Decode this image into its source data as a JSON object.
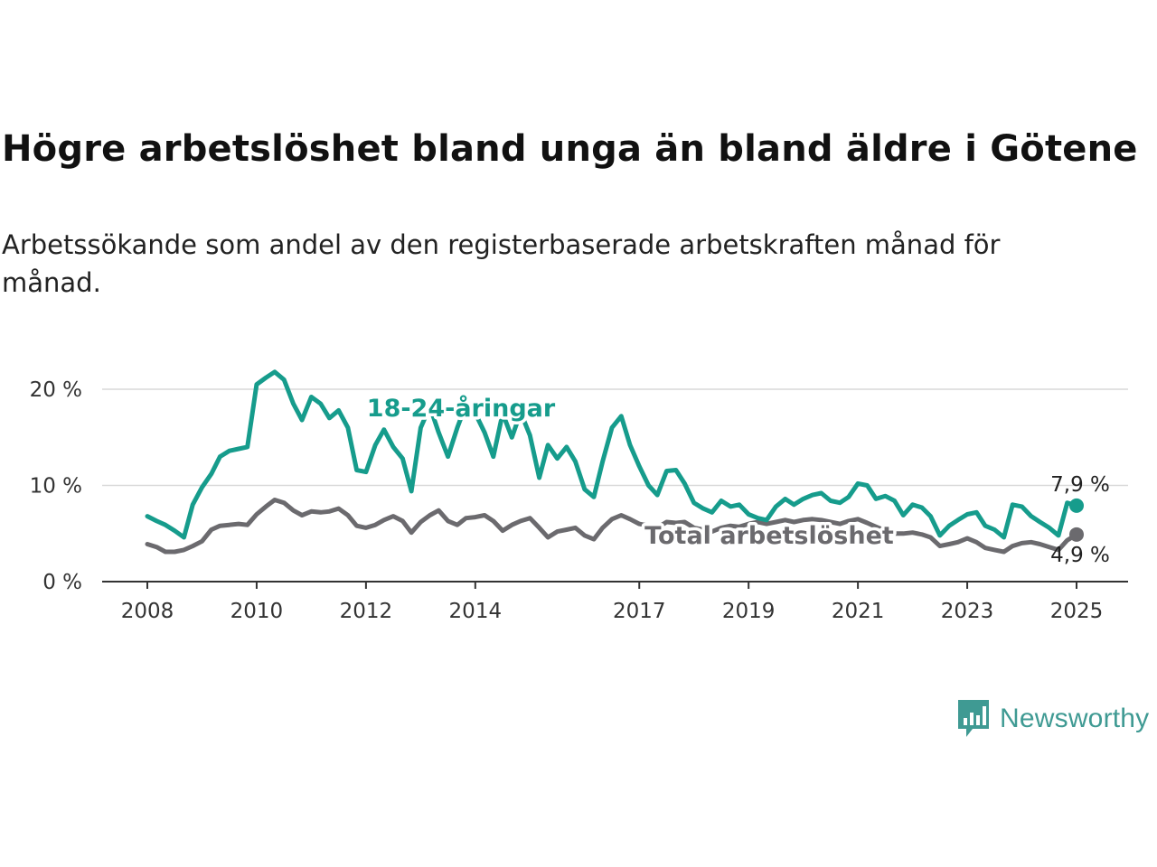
{
  "title": "Högre arbetslöshet bland unga än bland äldre i Götene",
  "subtitle": "Arbetssökande som andel av den registerbaserade arbetskraften månad för månad.",
  "logo": {
    "text": "Newsworthy",
    "icon": "bar-chart-speech-bubble-icon",
    "color": "#3f9a93"
  },
  "chart_data": {
    "type": "line",
    "title": "",
    "xlabel": "",
    "ylabel": "",
    "ylim": [
      0,
      22
    ],
    "y_ticks": [
      0,
      10,
      20
    ],
    "y_tick_labels": [
      "0 %",
      "10 %",
      "20 %"
    ],
    "x_ticks": [
      2008,
      2010,
      2012,
      2014,
      2017,
      2019,
      2021,
      2023,
      2025
    ],
    "x_tick_labels": [
      "2008",
      "2010",
      "2012",
      "2014",
      "2017",
      "2019",
      "2021",
      "2023",
      "2025"
    ],
    "grid": "horizontal",
    "legend": "direct labels on lines",
    "series": [
      {
        "name": "18-24-åringar",
        "color": "#169c8c",
        "end_label": "7,9 %",
        "points": [
          [
            2008.0,
            6.8
          ],
          [
            2008.17,
            6.3
          ],
          [
            2008.33,
            5.9
          ],
          [
            2008.5,
            5.3
          ],
          [
            2008.67,
            4.6
          ],
          [
            2008.83,
            8.0
          ],
          [
            2009.0,
            9.8
          ],
          [
            2009.17,
            11.2
          ],
          [
            2009.33,
            13.0
          ],
          [
            2009.5,
            13.6
          ],
          [
            2009.67,
            13.8
          ],
          [
            2009.83,
            14.0
          ],
          [
            2010.0,
            20.5
          ],
          [
            2010.17,
            21.2
          ],
          [
            2010.33,
            21.8
          ],
          [
            2010.5,
            21.0
          ],
          [
            2010.67,
            18.5
          ],
          [
            2010.83,
            16.8
          ],
          [
            2011.0,
            19.2
          ],
          [
            2011.17,
            18.5
          ],
          [
            2011.33,
            17.0
          ],
          [
            2011.5,
            17.8
          ],
          [
            2011.67,
            16.0
          ],
          [
            2011.83,
            11.6
          ],
          [
            2012.0,
            11.4
          ],
          [
            2012.17,
            14.2
          ],
          [
            2012.33,
            15.8
          ],
          [
            2012.5,
            14.0
          ],
          [
            2012.67,
            12.8
          ],
          [
            2012.83,
            9.4
          ],
          [
            2013.0,
            16.0
          ],
          [
            2013.17,
            18.2
          ],
          [
            2013.33,
            15.5
          ],
          [
            2013.5,
            13.0
          ],
          [
            2013.67,
            16.0
          ],
          [
            2013.83,
            18.4
          ],
          [
            2014.0,
            17.5
          ],
          [
            2014.17,
            15.5
          ],
          [
            2014.33,
            13.0
          ],
          [
            2014.5,
            17.5
          ],
          [
            2014.67,
            15.0
          ],
          [
            2014.83,
            17.6
          ],
          [
            2015.0,
            15.2
          ],
          [
            2015.17,
            10.8
          ],
          [
            2015.33,
            14.2
          ],
          [
            2015.5,
            12.8
          ],
          [
            2015.67,
            14.0
          ],
          [
            2015.83,
            12.5
          ],
          [
            2016.0,
            9.6
          ],
          [
            2016.17,
            8.8
          ],
          [
            2016.33,
            12.5
          ],
          [
            2016.5,
            16.0
          ],
          [
            2016.67,
            17.2
          ],
          [
            2016.83,
            14.2
          ],
          [
            2017.0,
            12.0
          ],
          [
            2017.17,
            10.0
          ],
          [
            2017.33,
            9.0
          ],
          [
            2017.5,
            11.5
          ],
          [
            2017.67,
            11.6
          ],
          [
            2017.83,
            10.2
          ],
          [
            2018.0,
            8.2
          ],
          [
            2018.17,
            7.6
          ],
          [
            2018.33,
            7.2
          ],
          [
            2018.5,
            8.4
          ],
          [
            2018.67,
            7.8
          ],
          [
            2018.83,
            8.0
          ],
          [
            2019.0,
            7.0
          ],
          [
            2019.17,
            6.6
          ],
          [
            2019.33,
            6.4
          ],
          [
            2019.5,
            7.8
          ],
          [
            2019.67,
            8.6
          ],
          [
            2019.83,
            8.0
          ],
          [
            2020.0,
            8.6
          ],
          [
            2020.17,
            9.0
          ],
          [
            2020.33,
            9.2
          ],
          [
            2020.5,
            8.4
          ],
          [
            2020.67,
            8.2
          ],
          [
            2020.83,
            8.8
          ],
          [
            2021.0,
            10.2
          ],
          [
            2021.17,
            10.0
          ],
          [
            2021.33,
            8.6
          ],
          [
            2021.5,
            8.9
          ],
          [
            2021.67,
            8.4
          ],
          [
            2021.83,
            6.9
          ],
          [
            2022.0,
            8.0
          ],
          [
            2022.17,
            7.7
          ],
          [
            2022.33,
            6.8
          ],
          [
            2022.5,
            4.8
          ],
          [
            2022.67,
            5.8
          ],
          [
            2022.83,
            6.4
          ],
          [
            2023.0,
            7.0
          ],
          [
            2023.17,
            7.2
          ],
          [
            2023.33,
            5.8
          ],
          [
            2023.5,
            5.4
          ],
          [
            2023.67,
            4.6
          ],
          [
            2023.83,
            8.0
          ],
          [
            2024.0,
            7.8
          ],
          [
            2024.17,
            6.8
          ],
          [
            2024.33,
            6.2
          ],
          [
            2024.5,
            5.6
          ],
          [
            2024.67,
            4.8
          ],
          [
            2024.83,
            8.2
          ],
          [
            2025.0,
            7.9
          ]
        ]
      },
      {
        "name": "Total arbetslöshet",
        "color": "#6b6a6e",
        "end_label": "4,9 %",
        "points": [
          [
            2008.0,
            3.9
          ],
          [
            2008.17,
            3.6
          ],
          [
            2008.33,
            3.1
          ],
          [
            2008.5,
            3.1
          ],
          [
            2008.67,
            3.3
          ],
          [
            2008.83,
            3.7
          ],
          [
            2009.0,
            4.2
          ],
          [
            2009.17,
            5.4
          ],
          [
            2009.33,
            5.8
          ],
          [
            2009.5,
            5.9
          ],
          [
            2009.67,
            6.0
          ],
          [
            2009.83,
            5.9
          ],
          [
            2010.0,
            7.0
          ],
          [
            2010.17,
            7.8
          ],
          [
            2010.33,
            8.5
          ],
          [
            2010.5,
            8.2
          ],
          [
            2010.67,
            7.4
          ],
          [
            2010.83,
            6.9
          ],
          [
            2011.0,
            7.3
          ],
          [
            2011.17,
            7.2
          ],
          [
            2011.33,
            7.3
          ],
          [
            2011.5,
            7.6
          ],
          [
            2011.67,
            6.9
          ],
          [
            2011.83,
            5.8
          ],
          [
            2012.0,
            5.6
          ],
          [
            2012.17,
            5.9
          ],
          [
            2012.33,
            6.4
          ],
          [
            2012.5,
            6.8
          ],
          [
            2012.67,
            6.3
          ],
          [
            2012.83,
            5.1
          ],
          [
            2013.0,
            6.2
          ],
          [
            2013.17,
            6.9
          ],
          [
            2013.33,
            7.4
          ],
          [
            2013.5,
            6.3
          ],
          [
            2013.67,
            5.9
          ],
          [
            2013.83,
            6.6
          ],
          [
            2014.0,
            6.7
          ],
          [
            2014.17,
            6.9
          ],
          [
            2014.33,
            6.3
          ],
          [
            2014.5,
            5.3
          ],
          [
            2014.67,
            5.9
          ],
          [
            2014.83,
            6.3
          ],
          [
            2015.0,
            6.6
          ],
          [
            2015.17,
            5.6
          ],
          [
            2015.33,
            4.6
          ],
          [
            2015.5,
            5.2
          ],
          [
            2015.67,
            5.4
          ],
          [
            2015.83,
            5.6
          ],
          [
            2016.0,
            4.8
          ],
          [
            2016.17,
            4.4
          ],
          [
            2016.33,
            5.6
          ],
          [
            2016.5,
            6.5
          ],
          [
            2016.67,
            6.9
          ],
          [
            2016.83,
            6.5
          ],
          [
            2017.0,
            6.0
          ],
          [
            2017.17,
            5.8
          ],
          [
            2017.33,
            5.6
          ],
          [
            2017.5,
            6.2
          ],
          [
            2017.67,
            6.1
          ],
          [
            2017.83,
            6.2
          ],
          [
            2018.0,
            5.6
          ],
          [
            2018.17,
            5.4
          ],
          [
            2018.33,
            5.2
          ],
          [
            2018.5,
            5.6
          ],
          [
            2018.67,
            5.8
          ],
          [
            2018.83,
            5.7
          ],
          [
            2019.0,
            6.0
          ],
          [
            2019.17,
            6.2
          ],
          [
            2019.33,
            6.0
          ],
          [
            2019.5,
            6.2
          ],
          [
            2019.67,
            6.4
          ],
          [
            2019.83,
            6.2
          ],
          [
            2020.0,
            6.4
          ],
          [
            2020.17,
            6.5
          ],
          [
            2020.33,
            6.4
          ],
          [
            2020.5,
            6.2
          ],
          [
            2020.67,
            6.0
          ],
          [
            2020.83,
            6.3
          ],
          [
            2021.0,
            6.5
          ],
          [
            2021.17,
            6.1
          ],
          [
            2021.33,
            5.7
          ],
          [
            2021.5,
            5.3
          ],
          [
            2021.67,
            5.0
          ],
          [
            2021.83,
            5.0
          ],
          [
            2022.0,
            5.1
          ],
          [
            2022.17,
            4.9
          ],
          [
            2022.33,
            4.6
          ],
          [
            2022.5,
            3.7
          ],
          [
            2022.67,
            3.9
          ],
          [
            2022.83,
            4.1
          ],
          [
            2023.0,
            4.5
          ],
          [
            2023.17,
            4.1
          ],
          [
            2023.33,
            3.5
          ],
          [
            2023.5,
            3.3
          ],
          [
            2023.67,
            3.1
          ],
          [
            2023.83,
            3.7
          ],
          [
            2024.0,
            4.0
          ],
          [
            2024.17,
            4.1
          ],
          [
            2024.33,
            3.9
          ],
          [
            2024.5,
            3.6
          ],
          [
            2024.67,
            3.3
          ],
          [
            2024.83,
            4.3
          ],
          [
            2025.0,
            4.9
          ]
        ]
      }
    ]
  }
}
